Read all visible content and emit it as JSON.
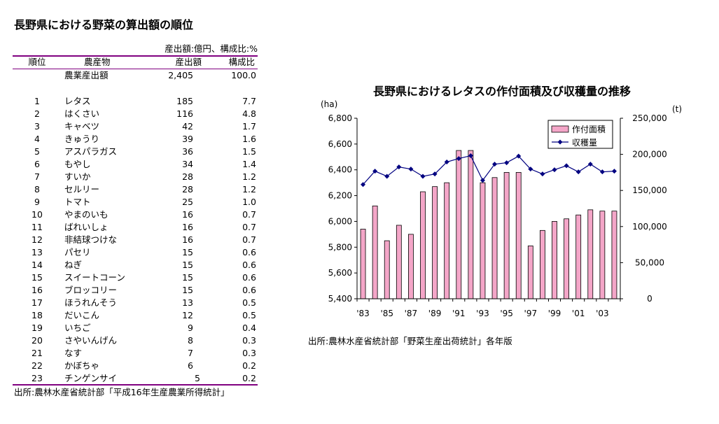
{
  "table": {
    "title": "長野県における野菜の算出額の順位",
    "unit_note": "産出額:億円、構成比:%",
    "headers": {
      "rank": "順位",
      "crop": "農産物",
      "value": "産出額",
      "ratio": "構成比"
    },
    "total": {
      "label": "農業産出額",
      "value": "2,405",
      "ratio": "100.0"
    },
    "rows": [
      {
        "rank": "1",
        "crop": "レタス",
        "value": "185",
        "ratio": "7.7"
      },
      {
        "rank": "2",
        "crop": "はくさい",
        "value": "116",
        "ratio": "4.8"
      },
      {
        "rank": "3",
        "crop": "キャベツ",
        "value": "42",
        "ratio": "1.7"
      },
      {
        "rank": "4",
        "crop": "きゅうり",
        "value": "39",
        "ratio": "1.6"
      },
      {
        "rank": "5",
        "crop": "アスパラガス",
        "value": "36",
        "ratio": "1.5"
      },
      {
        "rank": "6",
        "crop": "もやし",
        "value": "34",
        "ratio": "1.4"
      },
      {
        "rank": "7",
        "crop": "すいか",
        "value": "28",
        "ratio": "1.2"
      },
      {
        "rank": "8",
        "crop": "セルリー",
        "value": "28",
        "ratio": "1.2"
      },
      {
        "rank": "9",
        "crop": "トマト",
        "value": "25",
        "ratio": "1.0"
      },
      {
        "rank": "10",
        "crop": "やまのいも",
        "value": "16",
        "ratio": "0.7"
      },
      {
        "rank": "11",
        "crop": "ばれいしょ",
        "value": "16",
        "ratio": "0.7"
      },
      {
        "rank": "12",
        "crop": "非結球つけな",
        "value": "16",
        "ratio": "0.7"
      },
      {
        "rank": "13",
        "crop": "パセリ",
        "value": "15",
        "ratio": "0.6"
      },
      {
        "rank": "14",
        "crop": "ねぎ",
        "value": "15",
        "ratio": "0.6"
      },
      {
        "rank": "15",
        "crop": "スイートコーン",
        "value": "15",
        "ratio": "0.6"
      },
      {
        "rank": "16",
        "crop": "ブロッコリー",
        "value": "15",
        "ratio": "0.6"
      },
      {
        "rank": "17",
        "crop": "ほうれんそう",
        "value": "13",
        "ratio": "0.5"
      },
      {
        "rank": "18",
        "crop": "だいこん",
        "value": "12",
        "ratio": "0.5"
      },
      {
        "rank": "19",
        "crop": "いちご",
        "value": "9",
        "ratio": "0.4"
      },
      {
        "rank": "20",
        "crop": "さやいんげん",
        "value": "8",
        "ratio": "0.3"
      },
      {
        "rank": "21",
        "crop": "なす",
        "value": "7",
        "ratio": "0.3"
      },
      {
        "rank": "22",
        "crop": "かぼちゃ",
        "value": "6",
        "ratio": "0.2"
      },
      {
        "rank": "23",
        "crop": "チンゲンサイ",
        "value": "5",
        "ratio": "0.2"
      }
    ],
    "source": "出所:農林水産省統計部「平成16年生産農業所得統計」"
  },
  "chart_data": {
    "type": "bar+line",
    "title": "長野県におけるレタスの作付面積及び収穫量の推移",
    "years": [
      1983,
      1984,
      1985,
      1986,
      1987,
      1988,
      1989,
      1990,
      1991,
      1992,
      1993,
      1994,
      1995,
      1996,
      1997,
      1998,
      1999,
      2000,
      2001,
      2002,
      2003,
      2004
    ],
    "x_tick_labels": [
      "'83",
      "'85",
      "'87",
      "'89",
      "'91",
      "'93",
      "'95",
      "'97",
      "'99",
      "'01",
      "'03"
    ],
    "left_axis": {
      "label": "(ha)",
      "range": [
        5400,
        6800
      ],
      "ticks": [
        "5,400",
        "5,600",
        "5,800",
        "6,000",
        "6,200",
        "6,400",
        "6,600",
        "6,800"
      ]
    },
    "right_axis": {
      "label": "(t)",
      "range": [
        0,
        250000
      ],
      "ticks": [
        "0",
        "50,000",
        "100,000",
        "150,000",
        "200,000",
        "250,000"
      ]
    },
    "series": [
      {
        "name": "作付面積",
        "type": "bar",
        "axis": "left",
        "color": "#f4a6c8",
        "values": [
          5940,
          6120,
          5850,
          5970,
          5900,
          6230,
          6270,
          6300,
          6550,
          6550,
          6300,
          6340,
          6380,
          6380,
          5810,
          5930,
          6000,
          6020,
          6050,
          6090,
          6080,
          6080
        ]
      },
      {
        "name": "収穫量",
        "type": "line",
        "axis": "right",
        "color": "#000080",
        "values": [
          158200,
          176700,
          169600,
          182500,
          179600,
          169600,
          172800,
          189400,
          194200,
          198100,
          164000,
          186400,
          188400,
          197500,
          179600,
          172800,
          178700,
          184200,
          175700,
          186400,
          175700,
          176700
        ]
      }
    ],
    "legend_position": "top-right",
    "source": "出所:農林水産省統計部「野菜生産出荷統計」各年版"
  }
}
